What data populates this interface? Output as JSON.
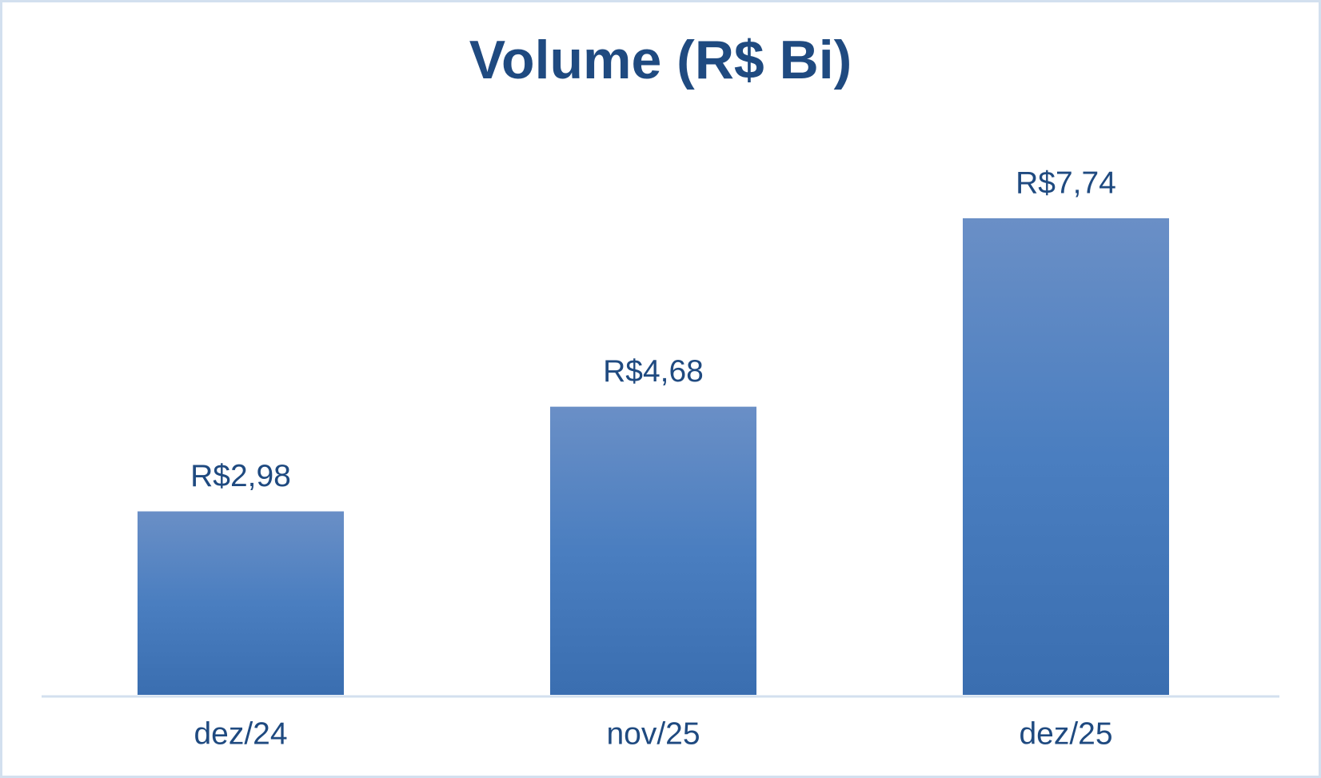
{
  "chart_data": {
    "type": "bar",
    "title": "Volume (R$ Bi)",
    "categories": [
      "dez/24",
      "nov/25",
      "dez/25"
    ],
    "values": [
      2.98,
      4.68,
      7.74
    ],
    "value_labels": [
      "R$2,98",
      "R$4,68",
      "R$7,74"
    ],
    "color": "#4a7cbf"
  }
}
